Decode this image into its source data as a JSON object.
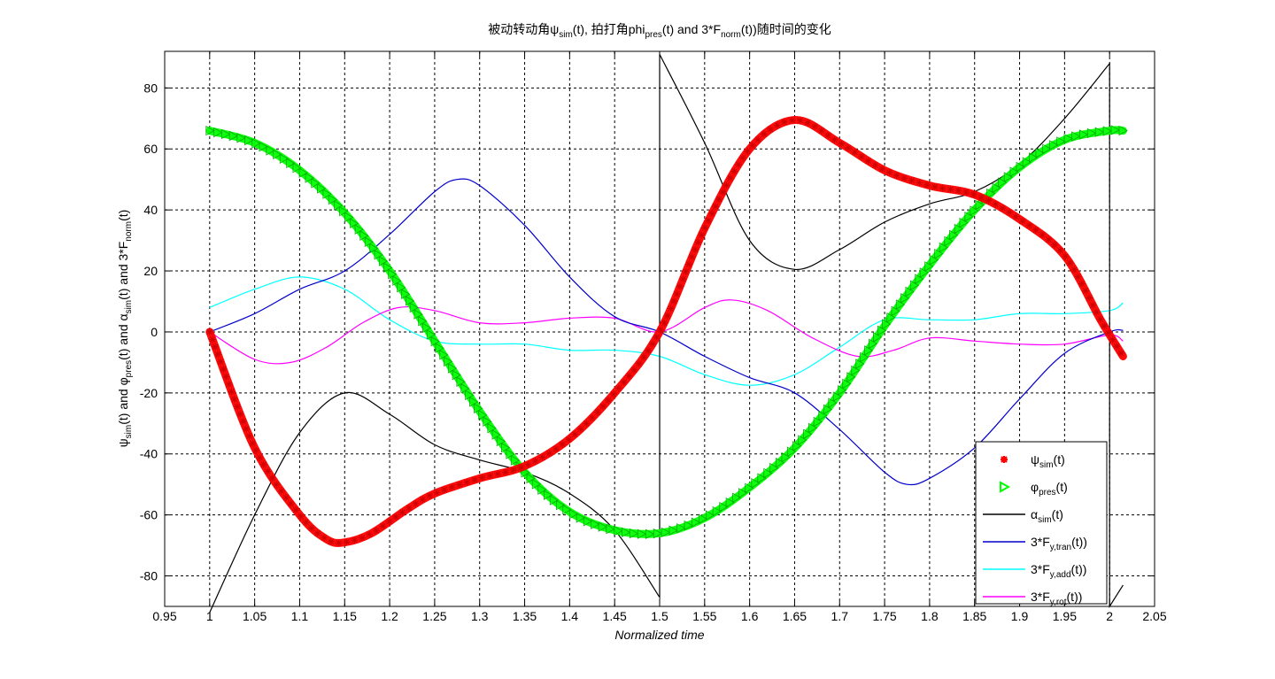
{
  "figure": {
    "title": {
      "prefix": "被动转动角ψ",
      "sub1": "sim",
      "mid1": "(t), 拍打角phi",
      "sub2": "pres",
      "mid2": "(t) and 3*F",
      "sub3": "norm",
      "suffix": "(t))随时间的变化"
    },
    "xlabel": "Normalized time",
    "ylabel": {
      "p1": "ψ",
      "s1": "sim",
      "p2": "(t) and φ",
      "s2": "pres",
      "p3": "(t) and α",
      "s3": "sim",
      "p4": "(t) and 3*F",
      "s4": "norm",
      "p5": "(t)"
    }
  },
  "chart_data": {
    "type": "line",
    "xlim": [
      0.95,
      2.05
    ],
    "ylim": [
      -90,
      92
    ],
    "grid": true,
    "grid_style": "dashed",
    "legend_placement": "bottom-right",
    "x_ticks": [
      0.95,
      1,
      1.05,
      1.1,
      1.15,
      1.2,
      1.25,
      1.3,
      1.35,
      1.4,
      1.45,
      1.5,
      1.55,
      1.6,
      1.65,
      1.7,
      1.75,
      1.8,
      1.85,
      1.9,
      1.95,
      2,
      2.05
    ],
    "x_tick_labels": [
      "0.95",
      "1",
      "1.05",
      "1.1",
      "1.15",
      "1.2",
      "1.25",
      "1.3",
      "1.35",
      "1.4",
      "1.45",
      "1.5",
      "1.55",
      "1.6",
      "1.65",
      "1.7",
      "1.75",
      "1.8",
      "1.85",
      "1.9",
      "1.95",
      "2",
      "2.05"
    ],
    "y_ticks": [
      -80,
      -60,
      -40,
      -20,
      0,
      20,
      40,
      60,
      80
    ],
    "y_tick_labels": [
      "-80",
      "-60",
      "-40",
      "-20",
      "0",
      "20",
      "40",
      "60",
      "80"
    ],
    "series": [
      {
        "key": "psi_sim",
        "legend": {
          "main": "ψ",
          "sub": "sim",
          "tail": "(t)"
        },
        "color": "#ff0000",
        "style": "markers-star",
        "points": [
          [
            1.0,
            0
          ],
          [
            1.05,
            -38
          ],
          [
            1.1,
            -60
          ],
          [
            1.13,
            -68
          ],
          [
            1.15,
            -69
          ],
          [
            1.18,
            -66
          ],
          [
            1.22,
            -58
          ],
          [
            1.25,
            -53
          ],
          [
            1.3,
            -48
          ],
          [
            1.35,
            -44
          ],
          [
            1.4,
            -35
          ],
          [
            1.45,
            -20
          ],
          [
            1.5,
            0
          ],
          [
            1.55,
            34
          ],
          [
            1.6,
            60
          ],
          [
            1.65,
            69.5
          ],
          [
            1.7,
            62
          ],
          [
            1.75,
            53
          ],
          [
            1.8,
            48
          ],
          [
            1.85,
            45
          ],
          [
            1.9,
            37
          ],
          [
            1.95,
            25
          ],
          [
            1.99,
            4
          ],
          [
            2.015,
            -8
          ]
        ]
      },
      {
        "key": "phi_pres",
        "legend": {
          "main": "φ",
          "sub": "pres",
          "tail": "(t)"
        },
        "color": "#00ff00",
        "style": "markers-triangle",
        "points": [
          [
            1.0,
            66
          ],
          [
            1.05,
            62
          ],
          [
            1.1,
            53
          ],
          [
            1.15,
            39
          ],
          [
            1.2,
            20
          ],
          [
            1.25,
            -3
          ],
          [
            1.3,
            -26
          ],
          [
            1.35,
            -46
          ],
          [
            1.4,
            -59
          ],
          [
            1.45,
            -65
          ],
          [
            1.5,
            -66
          ],
          [
            1.55,
            -61
          ],
          [
            1.6,
            -51
          ],
          [
            1.65,
            -38
          ],
          [
            1.7,
            -20
          ],
          [
            1.75,
            2
          ],
          [
            1.8,
            22
          ],
          [
            1.85,
            40
          ],
          [
            1.9,
            54
          ],
          [
            1.95,
            63
          ],
          [
            2.0,
            66
          ],
          [
            2.015,
            66
          ]
        ]
      },
      {
        "key": "alpha_sim",
        "legend": {
          "main": "α",
          "sub": "sim",
          "tail": "(t)"
        },
        "color": "#000000",
        "style": "line",
        "points": [
          [
            1.0,
            -92
          ],
          [
            1.05,
            -60
          ],
          [
            1.1,
            -33
          ],
          [
            1.15,
            -20
          ],
          [
            1.2,
            -27
          ],
          [
            1.25,
            -37
          ],
          [
            1.3,
            -42
          ],
          [
            1.35,
            -46
          ],
          [
            1.4,
            -53
          ],
          [
            1.45,
            -65
          ],
          [
            1.5,
            -87
          ],
          [
            1.5,
            91
          ],
          [
            1.55,
            62
          ],
          [
            1.6,
            30
          ],
          [
            1.65,
            20.5
          ],
          [
            1.7,
            27
          ],
          [
            1.75,
            36
          ],
          [
            1.8,
            42
          ],
          [
            1.85,
            46
          ],
          [
            1.9,
            55
          ],
          [
            1.95,
            70
          ],
          [
            2.0,
            88
          ],
          [
            2.0,
            -90
          ],
          [
            2.015,
            -83
          ]
        ]
      },
      {
        "key": "f_tran",
        "legend": {
          "main": "3*F",
          "sub": "y,tran",
          "tail": "(t))"
        },
        "color": "#0000cc",
        "style": "line",
        "points": [
          [
            1.0,
            0
          ],
          [
            1.05,
            6
          ],
          [
            1.1,
            14
          ],
          [
            1.15,
            20
          ],
          [
            1.2,
            32
          ],
          [
            1.25,
            46
          ],
          [
            1.275,
            50
          ],
          [
            1.3,
            48
          ],
          [
            1.35,
            35
          ],
          [
            1.4,
            18
          ],
          [
            1.45,
            5
          ],
          [
            1.5,
            0
          ],
          [
            1.55,
            -8
          ],
          [
            1.6,
            -15
          ],
          [
            1.65,
            -20
          ],
          [
            1.7,
            -32
          ],
          [
            1.75,
            -46
          ],
          [
            1.775,
            -50
          ],
          [
            1.8,
            -48
          ],
          [
            1.85,
            -38
          ],
          [
            1.9,
            -22
          ],
          [
            1.95,
            -7
          ],
          [
            2.0,
            0
          ],
          [
            2.015,
            0.5
          ]
        ]
      },
      {
        "key": "f_add",
        "legend": {
          "main": "3*F",
          "sub": "y,add",
          "tail": "(t))"
        },
        "color": "#00ffff",
        "style": "line",
        "points": [
          [
            1.0,
            8
          ],
          [
            1.05,
            14
          ],
          [
            1.1,
            18
          ],
          [
            1.15,
            14
          ],
          [
            1.2,
            4
          ],
          [
            1.25,
            -3
          ],
          [
            1.3,
            -4
          ],
          [
            1.35,
            -4
          ],
          [
            1.4,
            -6
          ],
          [
            1.45,
            -6
          ],
          [
            1.5,
            -8
          ],
          [
            1.55,
            -14
          ],
          [
            1.6,
            -17.5
          ],
          [
            1.65,
            -14
          ],
          [
            1.7,
            -5
          ],
          [
            1.75,
            4
          ],
          [
            1.8,
            4
          ],
          [
            1.85,
            4
          ],
          [
            1.9,
            6
          ],
          [
            1.95,
            6
          ],
          [
            2.0,
            7
          ],
          [
            2.015,
            9.5
          ]
        ]
      },
      {
        "key": "f_rot",
        "legend": {
          "main": "3*F",
          "sub": "y,rot",
          "tail": "(t))"
        },
        "color": "#ff00ff",
        "style": "line",
        "points": [
          [
            1.0,
            0
          ],
          [
            1.05,
            -9
          ],
          [
            1.09,
            -10
          ],
          [
            1.13,
            -5
          ],
          [
            1.17,
            3
          ],
          [
            1.21,
            8
          ],
          [
            1.25,
            7
          ],
          [
            1.3,
            3
          ],
          [
            1.35,
            3
          ],
          [
            1.4,
            4.5
          ],
          [
            1.45,
            4.5
          ],
          [
            1.5,
            0
          ],
          [
            1.55,
            8
          ],
          [
            1.58,
            10.5
          ],
          [
            1.62,
            7
          ],
          [
            1.67,
            -2
          ],
          [
            1.72,
            -8
          ],
          [
            1.76,
            -6
          ],
          [
            1.8,
            -2
          ],
          [
            1.85,
            -3
          ],
          [
            1.9,
            -4
          ],
          [
            1.95,
            -4
          ],
          [
            2.0,
            -1
          ],
          [
            2.015,
            -3
          ]
        ]
      }
    ]
  }
}
